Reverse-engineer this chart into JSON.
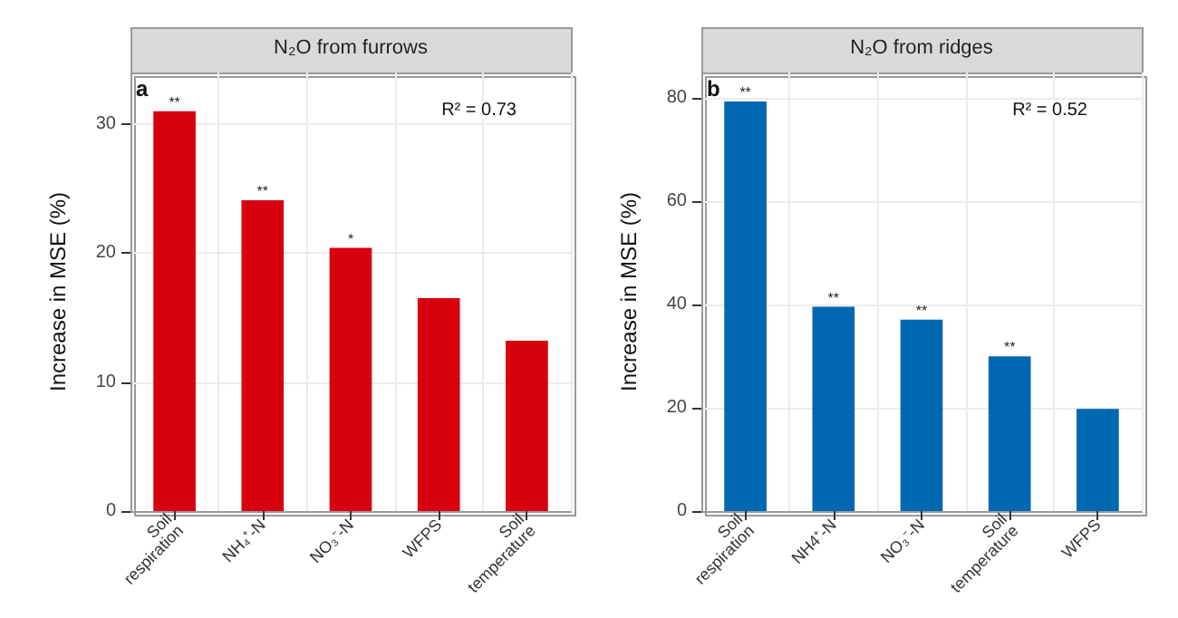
{
  "chart_data": [
    {
      "type": "bar",
      "title": "N₂O from furrows",
      "ylabel": "Increase in MSE (%)",
      "categories": [
        "Soil respiration",
        "NH₄⁺-N",
        "NO₃⁻-N",
        "WFPS",
        "Soil temperature"
      ],
      "values": [
        31.0,
        24.1,
        20.4,
        16.5,
        13.2
      ],
      "color": "#d7000f",
      "ylim": [
        0,
        34
      ],
      "yticks": [
        0,
        10,
        20,
        30
      ],
      "grid": true,
      "annotations": [
        "a",
        "R² = 0.73",
        {
          "text": "**",
          "x": "Soil respiration",
          "y": 31.0
        },
        {
          "text": "**",
          "x": "NH₄⁺-N",
          "y": 24.1
        },
        {
          "text": "*",
          "x": "NO₃⁻-N",
          "y": 20.4
        }
      ]
    },
    {
      "type": "bar",
      "title": "N₂O from ridges",
      "ylabel": "Increase in MSE (%)",
      "categories": [
        "Soil respiration",
        "NH4⁺-N",
        "NO₃⁻-N",
        "Soil temperature",
        "WFPS"
      ],
      "values": [
        79.4,
        39.6,
        37.1,
        30.0,
        19.8
      ],
      "color": "#0068b0",
      "ylim": [
        0,
        85
      ],
      "yticks": [
        0,
        20,
        40,
        60,
        80
      ],
      "grid": true,
      "annotations": [
        "b",
        "R² = 0.52",
        {
          "text": "**",
          "x": "Soil respiration",
          "y": 79.4
        },
        {
          "text": "**",
          "x": "NH4⁺-N",
          "y": 39.6
        },
        {
          "text": "**",
          "x": "NO₃⁻-N",
          "y": 37.1
        },
        {
          "text": "**",
          "x": "Soil temperature",
          "y": 30.0
        }
      ]
    }
  ]
}
